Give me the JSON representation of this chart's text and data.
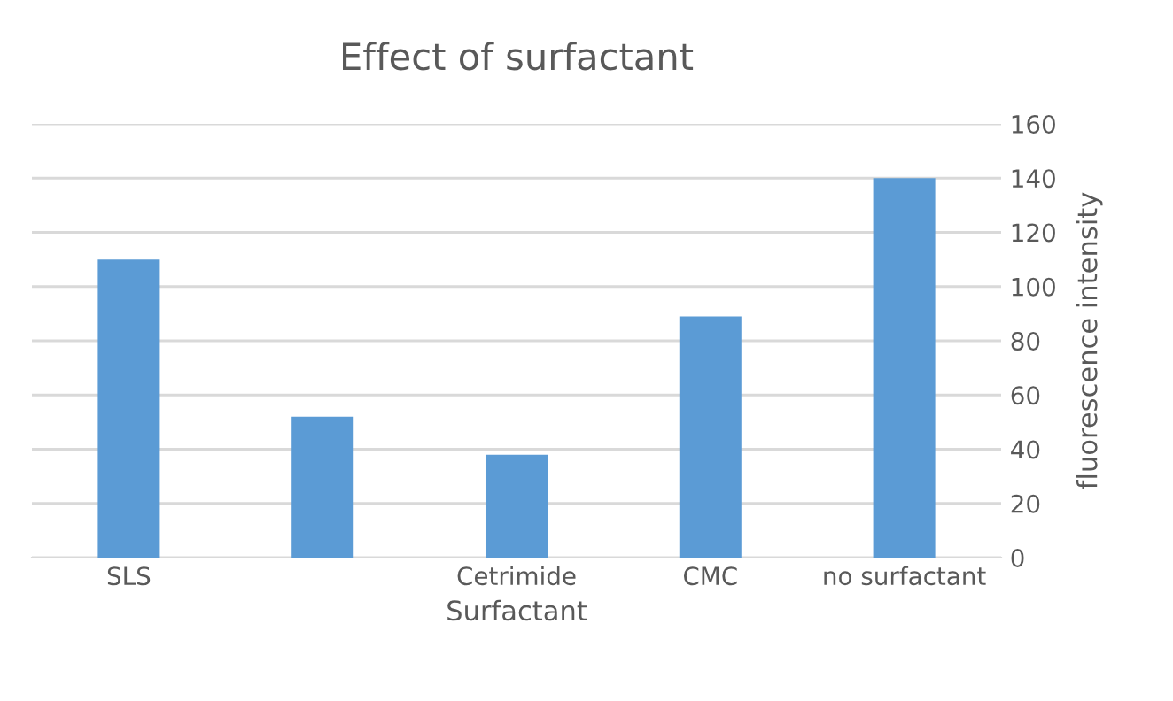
{
  "chart_data": {
    "type": "bar",
    "title": "Effect of surfactant",
    "xlabel": "Surfactant",
    "ylabel": "fluorescence intensity",
    "categories": [
      "SLS",
      null,
      "Cetrimide",
      "CMC",
      "no surfactant"
    ],
    "values": [
      110,
      52,
      38,
      89,
      140
    ],
    "color": "#5b9bd5",
    "ylim": [
      0,
      160
    ],
    "yticks": [
      0,
      20,
      40,
      60,
      80,
      100,
      120,
      140,
      160
    ],
    "grid": "y"
  }
}
